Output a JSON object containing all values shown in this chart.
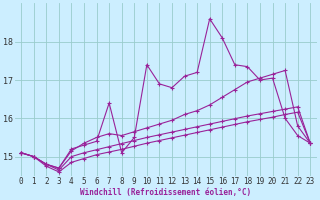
{
  "xlabel": "Windchill (Refroidissement éolien,°C)",
  "x_values": [
    0,
    1,
    2,
    3,
    4,
    5,
    6,
    7,
    8,
    9,
    10,
    11,
    12,
    13,
    14,
    15,
    16,
    17,
    18,
    19,
    20,
    21,
    22,
    23
  ],
  "line1": [
    15.1,
    15.0,
    14.8,
    14.7,
    15.2,
    15.3,
    15.4,
    16.4,
    15.1,
    15.5,
    17.4,
    16.9,
    16.8,
    17.1,
    17.2,
    18.6,
    18.1,
    17.4,
    17.35,
    17.0,
    17.05,
    16.0,
    15.55,
    15.35
  ],
  "line2": [
    15.1,
    15.0,
    14.8,
    14.7,
    15.15,
    15.35,
    15.5,
    15.6,
    15.55,
    15.65,
    15.75,
    15.85,
    15.95,
    16.1,
    16.2,
    16.35,
    16.55,
    16.75,
    16.95,
    17.05,
    17.15,
    17.25,
    15.8,
    15.35
  ],
  "line3": [
    15.1,
    15.0,
    14.8,
    14.65,
    15.0,
    15.1,
    15.18,
    15.26,
    15.34,
    15.42,
    15.5,
    15.57,
    15.64,
    15.71,
    15.78,
    15.85,
    15.92,
    15.99,
    16.06,
    16.12,
    16.18,
    16.24,
    16.3,
    15.35
  ],
  "line4": [
    15.1,
    15.0,
    14.75,
    14.6,
    14.85,
    14.95,
    15.05,
    15.12,
    15.19,
    15.27,
    15.35,
    15.42,
    15.49,
    15.56,
    15.63,
    15.7,
    15.77,
    15.84,
    15.91,
    15.97,
    16.03,
    16.1,
    16.16,
    15.35
  ],
  "line_color": "#992299",
  "bg_color": "#cceeff",
  "grid_color": "#99cccc",
  "ylim": [
    14.5,
    19.0
  ],
  "xlim": [
    -0.5,
    23.5
  ],
  "yticks": [
    15,
    16,
    17,
    18
  ],
  "xticks": [
    0,
    1,
    2,
    3,
    4,
    5,
    6,
    7,
    8,
    9,
    10,
    11,
    12,
    13,
    14,
    15,
    16,
    17,
    18,
    19,
    20,
    21,
    22,
    23
  ],
  "tick_fontsize": 5.5,
  "xlabel_fontsize": 5.5
}
